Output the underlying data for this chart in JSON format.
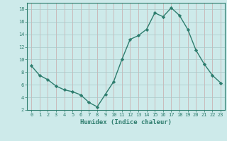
{
  "x": [
    0,
    1,
    2,
    3,
    4,
    5,
    6,
    7,
    8,
    9,
    10,
    11,
    12,
    13,
    14,
    15,
    16,
    17,
    18,
    19,
    20,
    21,
    22,
    23
  ],
  "y": [
    9.0,
    7.5,
    6.8,
    5.8,
    5.2,
    4.9,
    4.4,
    3.2,
    2.5,
    4.5,
    6.5,
    10.0,
    13.2,
    13.8,
    14.8,
    17.4,
    16.8,
    18.2,
    17.0,
    14.8,
    11.5,
    9.3,
    7.5,
    6.3
  ],
  "line_color": "#2e7d6e",
  "marker": "D",
  "marker_size": 2.2,
  "background_color": "#cdeaea",
  "grid_color": "#b8d8d8",
  "xlabel": "Humidex (Indice chaleur)",
  "xlim": [
    -0.5,
    23.5
  ],
  "ylim": [
    2,
    19
  ],
  "yticks": [
    2,
    4,
    6,
    8,
    10,
    12,
    14,
    16,
    18
  ],
  "xticks": [
    0,
    1,
    2,
    3,
    4,
    5,
    6,
    7,
    8,
    9,
    10,
    11,
    12,
    13,
    14,
    15,
    16,
    17,
    18,
    19,
    20,
    21,
    22,
    23
  ],
  "axis_color": "#2e7d6e",
  "tick_color": "#2e7d6e",
  "label_color": "#2e7d6e",
  "grid_alpha": 1.0,
  "linewidth": 1.0
}
